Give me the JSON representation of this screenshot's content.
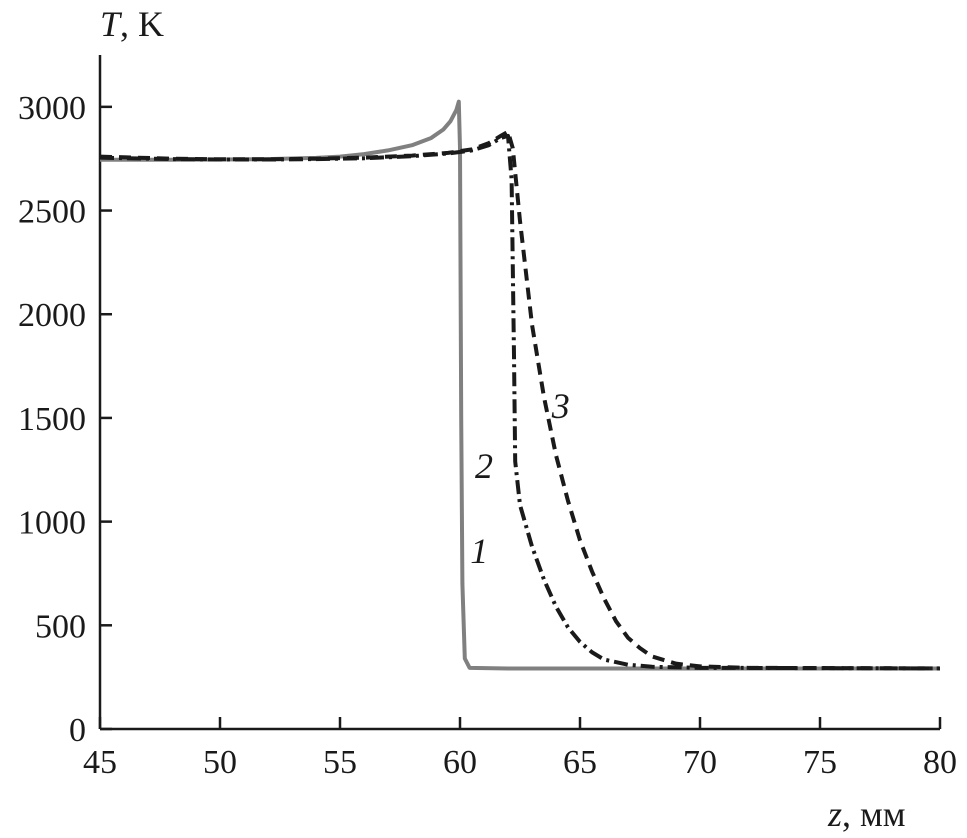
{
  "chart_data": {
    "type": "line",
    "xlabel": {
      "var": "z",
      "unit": ", мм"
    },
    "ylabel": {
      "var": "T",
      "unit": ", K"
    },
    "xlim": [
      45,
      80
    ],
    "ylim": [
      0,
      3250
    ],
    "xticks": [
      45,
      50,
      55,
      60,
      65,
      70,
      75,
      80
    ],
    "yticks": [
      0,
      500,
      1000,
      1500,
      2000,
      2500,
      3000
    ],
    "grid": false,
    "legend": "none",
    "series": [
      {
        "name": "1",
        "color": "#808080",
        "style": "solid",
        "points": [
          [
            45,
            2745
          ],
          [
            48,
            2745
          ],
          [
            50,
            2746
          ],
          [
            52,
            2748
          ],
          [
            54,
            2754
          ],
          [
            55,
            2760
          ],
          [
            56,
            2772
          ],
          [
            57,
            2790
          ],
          [
            58,
            2815
          ],
          [
            58.8,
            2850
          ],
          [
            59.3,
            2890
          ],
          [
            59.6,
            2930
          ],
          [
            59.85,
            2985
          ],
          [
            59.95,
            3025
          ],
          [
            60.0,
            2800
          ],
          [
            60.05,
            1500
          ],
          [
            60.1,
            700
          ],
          [
            60.2,
            340
          ],
          [
            60.4,
            295
          ],
          [
            62,
            292
          ],
          [
            80,
            292
          ]
        ]
      },
      {
        "name": "2",
        "color": "#1a1a1a",
        "style": "dash-dot",
        "points": [
          [
            45,
            2755
          ],
          [
            48,
            2748
          ],
          [
            50,
            2746
          ],
          [
            52,
            2746
          ],
          [
            54,
            2748
          ],
          [
            56,
            2752
          ],
          [
            58,
            2762
          ],
          [
            59.5,
            2775
          ],
          [
            60.5,
            2790
          ],
          [
            61.2,
            2815
          ],
          [
            61.7,
            2850
          ],
          [
            62.0,
            2860
          ],
          [
            62.15,
            2650
          ],
          [
            62.25,
            1800
          ],
          [
            62.3,
            1290
          ],
          [
            62.5,
            1080
          ],
          [
            63.0,
            880
          ],
          [
            63.5,
            720
          ],
          [
            64.0,
            590
          ],
          [
            64.5,
            490
          ],
          [
            65.0,
            420
          ],
          [
            65.5,
            370
          ],
          [
            66.0,
            335
          ],
          [
            67.0,
            310
          ],
          [
            68.0,
            300
          ],
          [
            70,
            295
          ],
          [
            80,
            292
          ]
        ]
      },
      {
        "name": "3",
        "color": "#1a1a1a",
        "style": "dashed",
        "points": [
          [
            45,
            2760
          ],
          [
            48,
            2750
          ],
          [
            50,
            2747
          ],
          [
            52,
            2747
          ],
          [
            54,
            2750
          ],
          [
            56,
            2755
          ],
          [
            58,
            2765
          ],
          [
            59.5,
            2778
          ],
          [
            60.5,
            2795
          ],
          [
            61.2,
            2825
          ],
          [
            61.7,
            2860
          ],
          [
            62.0,
            2880
          ],
          [
            62.2,
            2800
          ],
          [
            62.5,
            2450
          ],
          [
            63.0,
            1950
          ],
          [
            63.5,
            1600
          ],
          [
            64.0,
            1320
          ],
          [
            64.5,
            1100
          ],
          [
            65.0,
            910
          ],
          [
            65.5,
            760
          ],
          [
            66.0,
            630
          ],
          [
            66.5,
            520
          ],
          [
            67.0,
            440
          ],
          [
            67.5,
            390
          ],
          [
            68.0,
            350
          ],
          [
            69.0,
            315
          ],
          [
            70.0,
            302
          ],
          [
            72,
            295
          ],
          [
            80,
            292
          ]
        ]
      }
    ],
    "annotations": [
      {
        "text": "1",
        "x": 60.8,
        "y": 800
      },
      {
        "text": "2",
        "x": 61.0,
        "y": 1210
      },
      {
        "text": "3",
        "x": 64.2,
        "y": 1500
      }
    ]
  }
}
